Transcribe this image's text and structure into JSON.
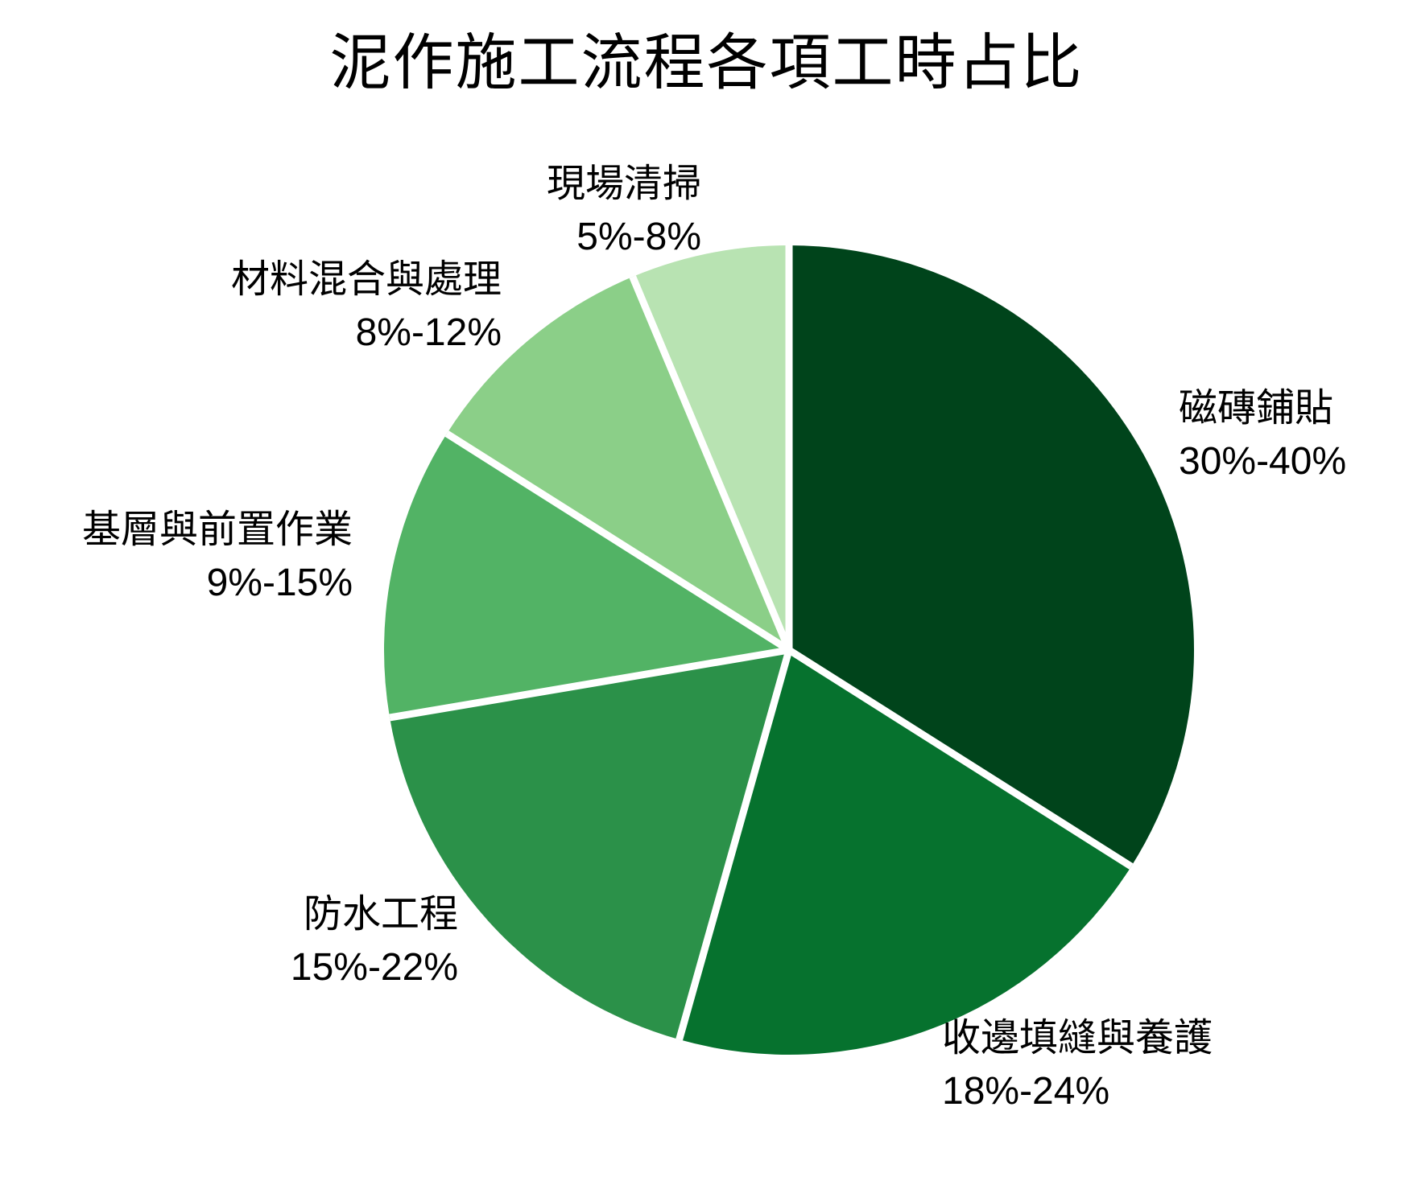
{
  "chart_data": {
    "type": "pie",
    "title": "泥作施工流程各項工時占比",
    "direction": "clockwise",
    "start_angle_deg": 0,
    "separator_color": "#ffffff",
    "colors": [
      "#00441b",
      "#06722e",
      "#2b9149",
      "#52b365",
      "#8bcf88",
      "#b8e3b2"
    ],
    "slices": [
      {
        "label": "磁磚鋪貼",
        "range": "30%-40%",
        "value": 35
      },
      {
        "label": "收邊填縫與養護",
        "range": "18%-24%",
        "value": 21
      },
      {
        "label": "防水工程",
        "range": "15%-22%",
        "value": 18.5
      },
      {
        "label": "基層與前置作業",
        "range": "9%-15%",
        "value": 12
      },
      {
        "label": "材料混合與處理",
        "range": "8%-12%",
        "value": 10
      },
      {
        "label": "現場清掃",
        "range": "5%-8%",
        "value": 6.5
      }
    ]
  }
}
